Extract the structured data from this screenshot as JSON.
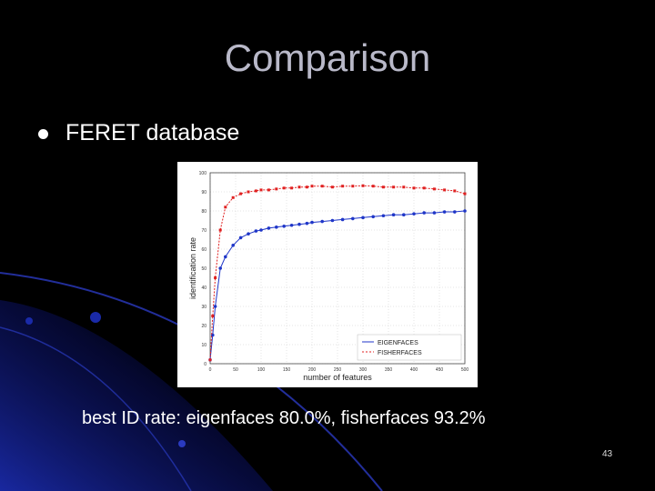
{
  "slide": {
    "title": "Comparison",
    "bullet": "FERET database",
    "caption": "best ID rate: eigenfaces 80.0%, fisherfaces 93.2%",
    "number": "43"
  },
  "colors": {
    "background": "#000000",
    "accent_blue": "#1a2aa8",
    "eigen": "#1f36c8",
    "fisher": "#e02020"
  },
  "chart_data": {
    "type": "line",
    "xlabel": "number of features",
    "ylabel": "identification rate",
    "xlim": [
      0,
      500
    ],
    "ylim": [
      0,
      100
    ],
    "xticks": [
      0,
      50,
      100,
      150,
      200,
      250,
      300,
      350,
      400,
      450,
      500
    ],
    "xtick_labels": [
      "0",
      "50",
      "100",
      "150",
      "200",
      "250",
      "300",
      "350",
      "400",
      "450",
      "500"
    ],
    "yticks": [
      0,
      10,
      20,
      30,
      40,
      50,
      60,
      70,
      80,
      90,
      100
    ],
    "ytick_labels": [
      "0",
      "10",
      "20",
      "30",
      "40",
      "50",
      "60",
      "70",
      "80",
      "90",
      "100"
    ],
    "grid": true,
    "legend_position": "bottom-right",
    "series": [
      {
        "name": "EIGENFACES",
        "color": "#1f36c8",
        "style": "solid",
        "marker": "circle",
        "x": [
          0,
          5,
          10,
          20,
          30,
          45,
          60,
          75,
          90,
          100,
          115,
          130,
          145,
          160,
          175,
          190,
          200,
          220,
          240,
          260,
          280,
          300,
          320,
          340,
          360,
          380,
          400,
          420,
          440,
          460,
          480,
          500
        ],
        "values": [
          2,
          15,
          30,
          50,
          56,
          62,
          66,
          68,
          69.5,
          70,
          71,
          71.5,
          72,
          72.5,
          73,
          73.5,
          74,
          74.5,
          75,
          75.5,
          76,
          76.5,
          77,
          77.5,
          78,
          78,
          78.5,
          79,
          79,
          79.5,
          79.5,
          80
        ]
      },
      {
        "name": "FISHERFACES",
        "color": "#e02020",
        "style": "dashed",
        "marker": "square",
        "x": [
          0,
          5,
          10,
          20,
          30,
          45,
          60,
          75,
          90,
          100,
          115,
          130,
          145,
          160,
          175,
          190,
          200,
          220,
          240,
          260,
          280,
          300,
          320,
          340,
          360,
          380,
          400,
          420,
          440,
          460,
          480,
          500
        ],
        "values": [
          2,
          25,
          45,
          70,
          82,
          87,
          89,
          90,
          90.5,
          91,
          91,
          91.5,
          92,
          92,
          92.5,
          92.5,
          93,
          93,
          92.5,
          93,
          93,
          93.2,
          93,
          92.5,
          92.5,
          92.5,
          92,
          92,
          91.5,
          91,
          90.5,
          89
        ]
      }
    ]
  }
}
